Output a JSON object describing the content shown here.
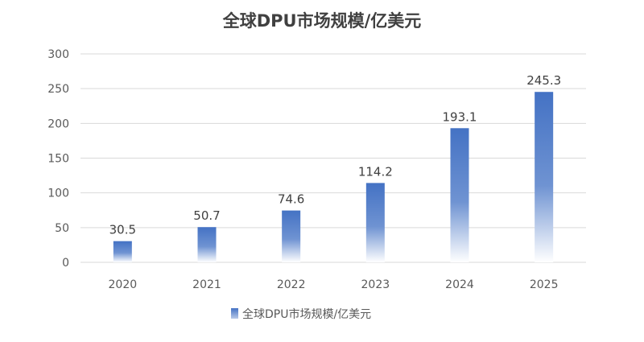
{
  "chart_data": {
    "type": "bar",
    "title": "全球DPU市场规模/亿美元",
    "xlabel": "",
    "ylabel": "",
    "categories": [
      "2020",
      "2021",
      "2022",
      "2023",
      "2024",
      "2025"
    ],
    "series": [
      {
        "name": "全球DPU市场规模/亿美元",
        "values": [
          30.5,
          50.7,
          74.6,
          114.2,
          193.1,
          245.3
        ],
        "data_labels": [
          "30.5",
          "50.7",
          "74.6",
          "114.2",
          "193.1",
          "245.3"
        ]
      }
    ],
    "ylim": [
      0,
      300
    ],
    "yticks": [
      0,
      50,
      100,
      150,
      200,
      250,
      300
    ],
    "grid": "horizontal",
    "legend_position": "bottom",
    "colors": {
      "bar_top": "#4472c4",
      "bar_bottom": "#ffffff",
      "grid": "#d9d9d9",
      "text": "#595959"
    }
  }
}
